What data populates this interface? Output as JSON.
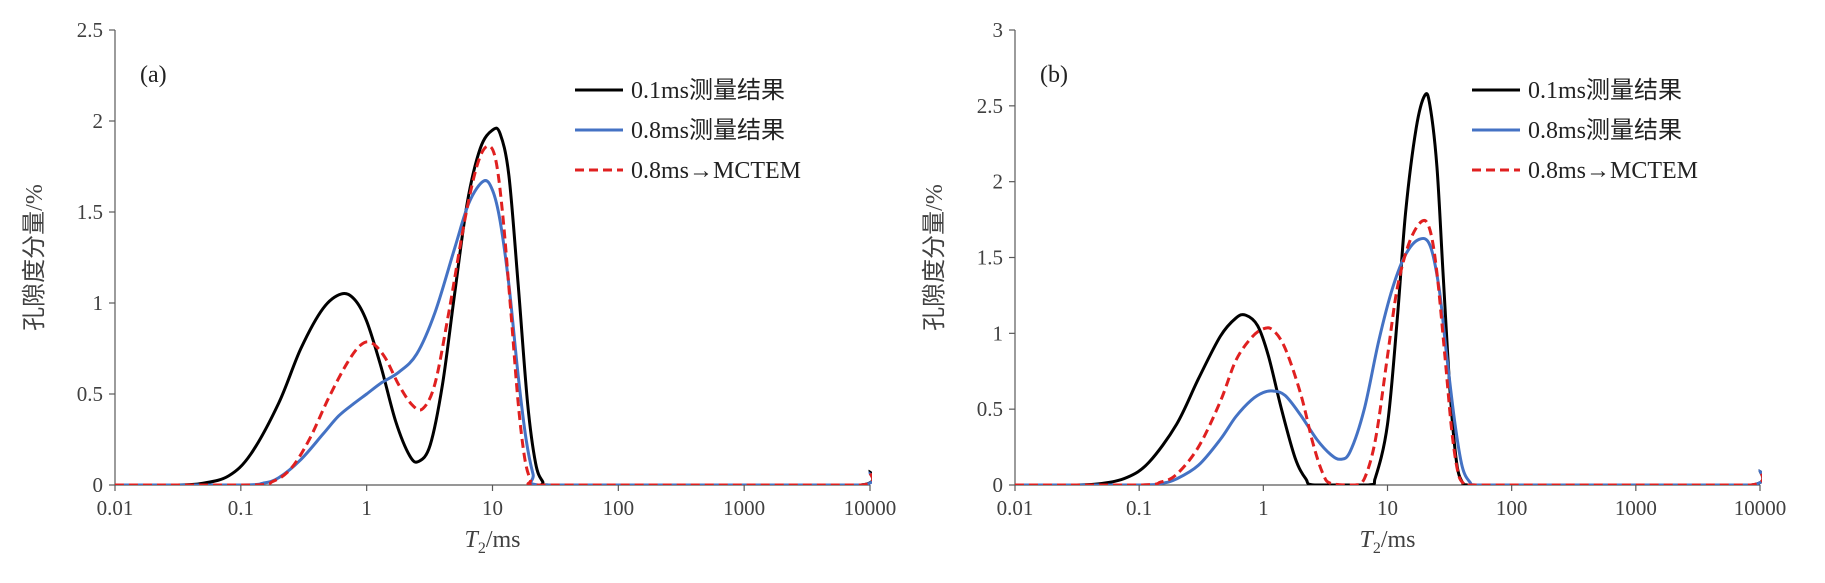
{
  "chart_data": [
    {
      "type": "line",
      "panel_label": "(a)",
      "xlabel_italic": "T",
      "xlabel_sub": "2",
      "xlabel_rest": "/ms",
      "ylabel": "孔隙度分量/%",
      "x_scale": "log",
      "xlim": [
        0.01,
        10000
      ],
      "ylim": [
        0,
        2.5
      ],
      "x_ticks": [
        0.01,
        0.1,
        1,
        10,
        100,
        1000,
        10000
      ],
      "x_tick_labels": [
        "0.01",
        "0.1",
        "1",
        "10",
        "100",
        "1000",
        "10000"
      ],
      "y_ticks": [
        0,
        0.5,
        1,
        1.5,
        2,
        2.5
      ],
      "y_tick_labels": [
        "0",
        "0.5",
        "1",
        "1.5",
        "2",
        "2.5"
      ],
      "grid": false,
      "legend_position": "top-right",
      "series": [
        {
          "name": "0.1ms测量结果",
          "color": "#000000",
          "dash": "solid",
          "points": [
            [
              0.01,
              0
            ],
            [
              0.03,
              0
            ],
            [
              0.05,
              0.01
            ],
            [
              0.08,
              0.05
            ],
            [
              0.12,
              0.17
            ],
            [
              0.2,
              0.45
            ],
            [
              0.3,
              0.75
            ],
            [
              0.45,
              0.97
            ],
            [
              0.63,
              1.05
            ],
            [
              0.8,
              1.02
            ],
            [
              1.0,
              0.9
            ],
            [
              1.3,
              0.65
            ],
            [
              1.7,
              0.35
            ],
            [
              2.2,
              0.16
            ],
            [
              2.6,
              0.13
            ],
            [
              3.2,
              0.22
            ],
            [
              4.0,
              0.55
            ],
            [
              5.0,
              1.05
            ],
            [
              6.3,
              1.55
            ],
            [
              8.0,
              1.85
            ],
            [
              10.0,
              1.95
            ],
            [
              11.5,
              1.93
            ],
            [
              13.5,
              1.7
            ],
            [
              16.0,
              1.1
            ],
            [
              19.0,
              0.45
            ],
            [
              22.0,
              0.12
            ],
            [
              25.0,
              0.02
            ],
            [
              28.0,
              0
            ],
            [
              100,
              0
            ],
            [
              1000,
              0
            ],
            [
              8500,
              0
            ],
            [
              10000,
              0.08
            ]
          ]
        },
        {
          "name": "0.8ms测量结果",
          "color": "#4472c4",
          "dash": "solid",
          "points": [
            [
              0.01,
              0
            ],
            [
              0.1,
              0
            ],
            [
              0.15,
              0.01
            ],
            [
              0.2,
              0.04
            ],
            [
              0.3,
              0.14
            ],
            [
              0.45,
              0.28
            ],
            [
              0.6,
              0.38
            ],
            [
              0.8,
              0.45
            ],
            [
              1.0,
              0.5
            ],
            [
              1.3,
              0.56
            ],
            [
              1.8,
              0.62
            ],
            [
              2.5,
              0.72
            ],
            [
              3.5,
              0.95
            ],
            [
              5.0,
              1.3
            ],
            [
              6.5,
              1.55
            ],
            [
              8.5,
              1.67
            ],
            [
              10.0,
              1.62
            ],
            [
              11.5,
              1.45
            ],
            [
              13.5,
              1.1
            ],
            [
              16.0,
              0.6
            ],
            [
              18.5,
              0.25
            ],
            [
              21.0,
              0.06
            ],
            [
              23.0,
              0
            ],
            [
              100,
              0
            ],
            [
              1000,
              0
            ],
            [
              8500,
              0
            ],
            [
              10000,
              0.07
            ]
          ]
        },
        {
          "name": "0.8ms→MCTEM",
          "color": "#e02020",
          "dash": "dashed",
          "points": [
            [
              0.01,
              0
            ],
            [
              0.12,
              0
            ],
            [
              0.18,
              0.02
            ],
            [
              0.25,
              0.09
            ],
            [
              0.35,
              0.25
            ],
            [
              0.5,
              0.48
            ],
            [
              0.7,
              0.67
            ],
            [
              0.9,
              0.77
            ],
            [
              1.1,
              0.78
            ],
            [
              1.4,
              0.7
            ],
            [
              1.8,
              0.55
            ],
            [
              2.3,
              0.44
            ],
            [
              2.8,
              0.42
            ],
            [
              3.5,
              0.56
            ],
            [
              4.5,
              0.95
            ],
            [
              6.0,
              1.45
            ],
            [
              7.5,
              1.75
            ],
            [
              9.0,
              1.86
            ],
            [
              10.5,
              1.8
            ],
            [
              12.0,
              1.5
            ],
            [
              14.0,
              0.95
            ],
            [
              16.0,
              0.45
            ],
            [
              18.0,
              0.15
            ],
            [
              20.0,
              0.03
            ],
            [
              22.0,
              0
            ],
            [
              100,
              0
            ],
            [
              1000,
              0
            ],
            [
              8500,
              0
            ],
            [
              10000,
              0.07
            ]
          ]
        }
      ]
    },
    {
      "type": "line",
      "panel_label": "(b)",
      "xlabel_italic": "T",
      "xlabel_sub": "2",
      "xlabel_rest": "/ms",
      "ylabel": "孔隙度分量/%",
      "x_scale": "log",
      "xlim": [
        0.01,
        10000
      ],
      "ylim": [
        0,
        3
      ],
      "x_ticks": [
        0.01,
        0.1,
        1,
        10,
        100,
        1000,
        10000
      ],
      "x_tick_labels": [
        "0.01",
        "0.1",
        "1",
        "10",
        "100",
        "1000",
        "10000"
      ],
      "y_ticks": [
        0,
        0.5,
        1,
        1.5,
        2,
        2.5,
        3
      ],
      "y_tick_labels": [
        "0",
        "0.5",
        "1",
        "1.5",
        "2",
        "2.5",
        "3"
      ],
      "grid": false,
      "legend_position": "top-right",
      "series": [
        {
          "name": "0.1ms测量结果",
          "color": "#000000",
          "dash": "solid",
          "points": [
            [
              0.01,
              0
            ],
            [
              0.03,
              0
            ],
            [
              0.05,
              0.01
            ],
            [
              0.08,
              0.05
            ],
            [
              0.12,
              0.15
            ],
            [
              0.2,
              0.4
            ],
            [
              0.3,
              0.7
            ],
            [
              0.45,
              0.98
            ],
            [
              0.6,
              1.1
            ],
            [
              0.72,
              1.12
            ],
            [
              0.9,
              1.05
            ],
            [
              1.1,
              0.85
            ],
            [
              1.4,
              0.5
            ],
            [
              1.8,
              0.18
            ],
            [
              2.2,
              0.04
            ],
            [
              2.6,
              0
            ],
            [
              7.0,
              0
            ],
            [
              8.0,
              0.05
            ],
            [
              10.0,
              0.4
            ],
            [
              12.0,
              1.1
            ],
            [
              14.0,
              1.8
            ],
            [
              17.0,
              2.35
            ],
            [
              20.0,
              2.57
            ],
            [
              22.0,
              2.5
            ],
            [
              25.0,
              2.1
            ],
            [
              28.0,
              1.4
            ],
            [
              32.0,
              0.6
            ],
            [
              36.0,
              0.15
            ],
            [
              40.0,
              0.02
            ],
            [
              45.0,
              0
            ],
            [
              100,
              0
            ],
            [
              1000,
              0
            ],
            [
              8500,
              0
            ],
            [
              10000,
              0.1
            ]
          ]
        },
        {
          "name": "0.8ms测量结果",
          "color": "#4472c4",
          "dash": "solid",
          "points": [
            [
              0.01,
              0
            ],
            [
              0.1,
              0
            ],
            [
              0.15,
              0.01
            ],
            [
              0.2,
              0.04
            ],
            [
              0.3,
              0.13
            ],
            [
              0.45,
              0.3
            ],
            [
              0.6,
              0.45
            ],
            [
              0.8,
              0.56
            ],
            [
              1.0,
              0.61
            ],
            [
              1.2,
              0.62
            ],
            [
              1.5,
              0.59
            ],
            [
              2.0,
              0.46
            ],
            [
              2.7,
              0.3
            ],
            [
              3.5,
              0.2
            ],
            [
              4.2,
              0.17
            ],
            [
              5.0,
              0.22
            ],
            [
              6.5,
              0.5
            ],
            [
              8.5,
              0.95
            ],
            [
              11.0,
              1.3
            ],
            [
              14.0,
              1.52
            ],
            [
              18.0,
              1.62
            ],
            [
              22.0,
              1.58
            ],
            [
              26.0,
              1.3
            ],
            [
              30.0,
              0.85
            ],
            [
              35.0,
              0.4
            ],
            [
              40.0,
              0.12
            ],
            [
              46.0,
              0.02
            ],
            [
              52.0,
              0
            ],
            [
              100,
              0
            ],
            [
              1000,
              0
            ],
            [
              8500,
              0
            ],
            [
              10000,
              0.1
            ]
          ]
        },
        {
          "name": "0.8ms→MCTEM",
          "color": "#e02020",
          "dash": "dashed",
          "points": [
            [
              0.01,
              0
            ],
            [
              0.1,
              0
            ],
            [
              0.15,
              0.02
            ],
            [
              0.2,
              0.07
            ],
            [
              0.3,
              0.25
            ],
            [
              0.45,
              0.55
            ],
            [
              0.6,
              0.82
            ],
            [
              0.8,
              0.97
            ],
            [
              1.0,
              1.03
            ],
            [
              1.2,
              1.02
            ],
            [
              1.5,
              0.9
            ],
            [
              2.0,
              0.6
            ],
            [
              2.5,
              0.28
            ],
            [
              3.0,
              0.08
            ],
            [
              3.5,
              0.01
            ],
            [
              5.5,
              0
            ],
            [
              6.5,
              0.04
            ],
            [
              8.0,
              0.3
            ],
            [
              10.0,
              0.85
            ],
            [
              12.0,
              1.3
            ],
            [
              15.0,
              1.6
            ],
            [
              19.0,
              1.74
            ],
            [
              22.0,
              1.68
            ],
            [
              25.0,
              1.4
            ],
            [
              29.0,
              0.85
            ],
            [
              33.0,
              0.35
            ],
            [
              37.0,
              0.08
            ],
            [
              41.0,
              0.01
            ],
            [
              45.0,
              0
            ],
            [
              100,
              0
            ],
            [
              1000,
              0
            ],
            [
              8500,
              0
            ],
            [
              10000,
              0.1
            ]
          ]
        }
      ]
    }
  ]
}
